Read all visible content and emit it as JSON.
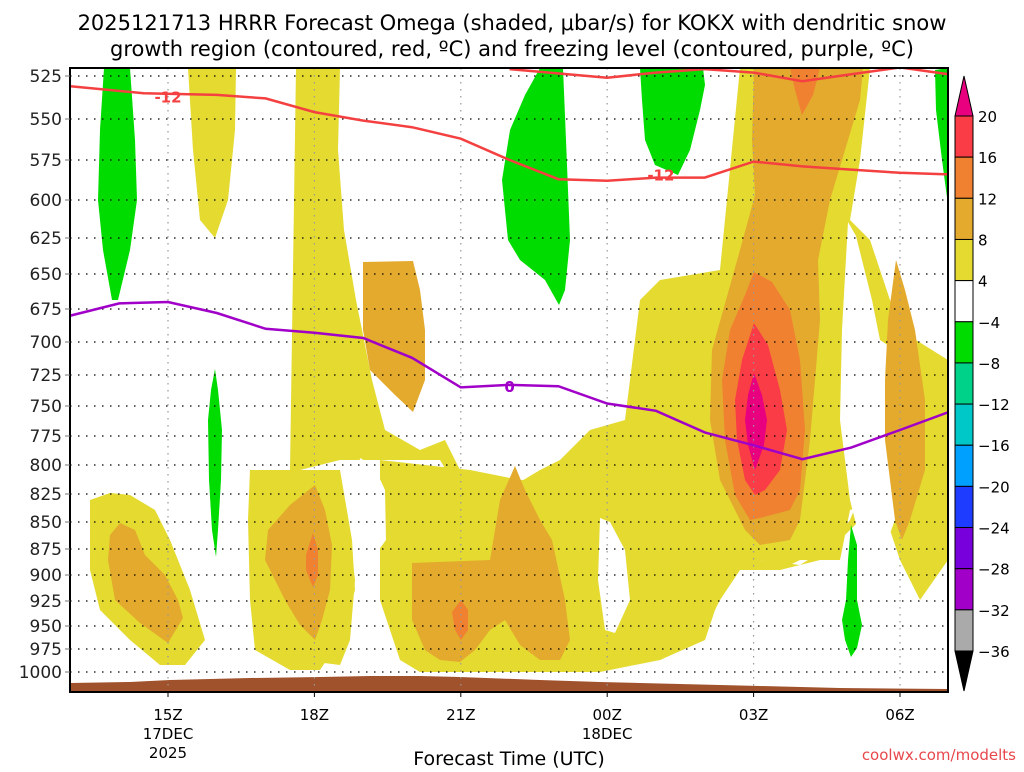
{
  "chart_data": {
    "type": "heatmap",
    "title_lines": [
      "2025121713 HRRR Forecast Omega (shaded, μbar/s) for KOKX with dendritic snow",
      "growth region (contoured, red, ºC) and freezing level (contoured, purple, ºC)"
    ],
    "xlabel": "Forecast Time (UTC)",
    "ylabel": "",
    "credit": "coolwx.com/modelts",
    "x_ticks": [
      {
        "label": "15Z",
        "sub": [
          "17DEC",
          "2025"
        ],
        "hour": 15
      },
      {
        "label": "18Z",
        "sub": [],
        "hour": 18
      },
      {
        "label": "21Z",
        "sub": [],
        "hour": 21
      },
      {
        "label": "00Z",
        "sub": [
          "18DEC"
        ],
        "hour": 24
      },
      {
        "label": "03Z",
        "sub": [],
        "hour": 27
      },
      {
        "label": "06Z",
        "sub": [],
        "hour": 30
      }
    ],
    "xlim_hours": [
      13,
      31
    ],
    "y_ticks": [
      525,
      550,
      575,
      600,
      625,
      650,
      675,
      700,
      725,
      750,
      775,
      800,
      825,
      850,
      875,
      900,
      925,
      950,
      975,
      1000
    ],
    "ylim_hpa": [
      520,
      1010
    ],
    "grid": true,
    "colorbar": {
      "placement": "right",
      "levels": [
        20,
        16,
        12,
        8,
        4,
        -4,
        -8,
        -12,
        -16,
        -20,
        -24,
        -28,
        -32,
        -36
      ],
      "colors": [
        "#e8007f",
        "#fa3c46",
        "#ef8130",
        "#e3aa2e",
        "#e4da30",
        "#ffffff",
        "#00dc00",
        "#00d28a",
        "#00c8c8",
        "#00a0ff",
        "#1e3cff",
        "#7800dc",
        "#a000c8",
        "#aaaaaa",
        "#000000"
      ]
    },
    "contours": [
      {
        "name": "dendritic-snow-growth -12C",
        "color": "#f44040",
        "label": "-12",
        "points_hour_hpa": [
          [
            13,
            531
          ],
          [
            14.5,
            535
          ],
          [
            16,
            536
          ],
          [
            17,
            538
          ],
          [
            18,
            546
          ],
          [
            19,
            551
          ],
          [
            20,
            555
          ],
          [
            21,
            562
          ],
          [
            22,
            575
          ],
          [
            23,
            587
          ],
          [
            24,
            588
          ],
          [
            25,
            586
          ],
          [
            26,
            586
          ],
          [
            27,
            576
          ],
          [
            28,
            579
          ],
          [
            29,
            581
          ],
          [
            30,
            583
          ],
          [
            31,
            584
          ]
        ]
      },
      {
        "name": "dendritic-snow-growth -12C upper",
        "color": "#f44040",
        "label": "",
        "points_hour_hpa": [
          [
            22,
            521
          ],
          [
            24,
            526
          ],
          [
            25,
            523
          ],
          [
            26,
            521
          ],
          [
            27,
            523
          ],
          [
            28,
            528
          ],
          [
            29,
            524
          ],
          [
            30,
            520
          ],
          [
            31,
            524
          ]
        ]
      },
      {
        "name": "freezing-level 0C",
        "color": "#a000c8",
        "label": "0",
        "points_hour_hpa": [
          [
            13,
            680
          ],
          [
            14,
            671
          ],
          [
            15,
            670
          ],
          [
            16,
            678
          ],
          [
            17,
            690
          ],
          [
            18,
            693
          ],
          [
            19,
            697
          ],
          [
            20,
            712
          ],
          [
            21,
            735
          ],
          [
            22,
            733
          ],
          [
            23,
            734
          ],
          [
            24,
            748
          ],
          [
            25,
            754
          ],
          [
            26,
            772
          ],
          [
            27,
            783
          ],
          [
            28,
            795
          ],
          [
            29,
            785
          ],
          [
            30,
            770
          ],
          [
            31,
            755
          ]
        ]
      }
    ],
    "terrain_color": "#a0522d",
    "regions": [
      {
        "value_class": "-8 to -4",
        "color": "#00dc00",
        "description": "narrow green maxima near 14Z (525-670 hPa), 16Z (715-880 hPa), 23Z (525-665 hPa), 01Z (525-580 hPa), 05Z (860-980 hPa), 07Z top"
      },
      {
        "value_class": "4 to 20+",
        "color_series": [
          "#e4da30",
          "#e3aa2e",
          "#ef8130",
          "#fa3c46",
          "#e8007f"
        ],
        "description": "strongest upward motion near 03Z at 740-800 hPa exceeding 20 μbar/s"
      }
    ]
  }
}
